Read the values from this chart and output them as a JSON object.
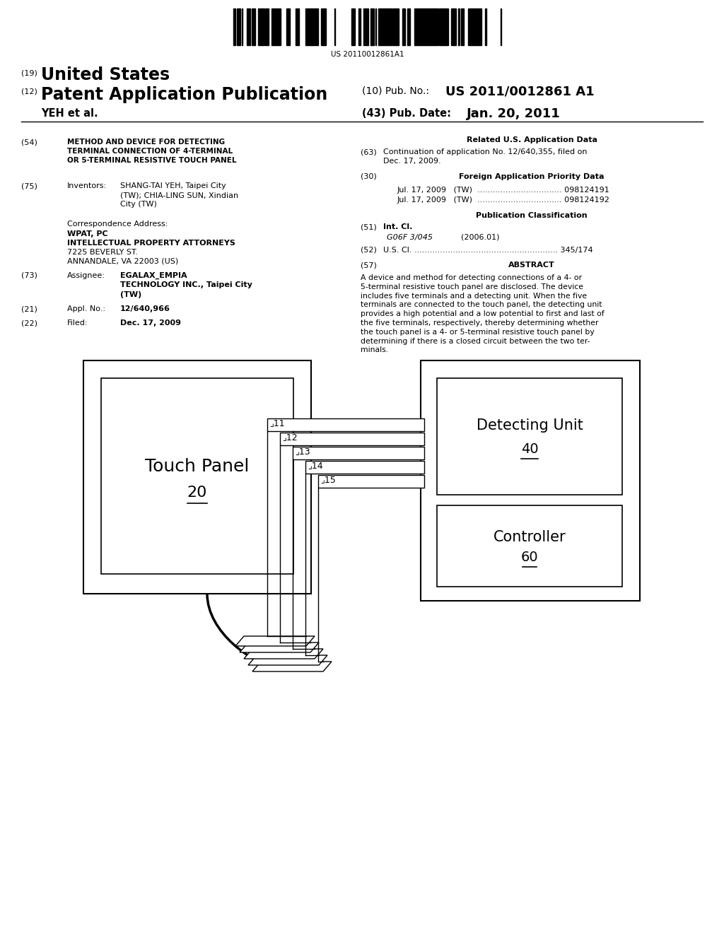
{
  "background_color": "#ffffff",
  "barcode_text": "US 20110012861A1",
  "header": {
    "country_num": "(19)",
    "country": "United States",
    "type_num": "(12)",
    "type": "Patent Application Publication",
    "pub_num_label": "(10) Pub. No.:",
    "pub_num": "US 2011/0012861 A1",
    "applicant": "YEH et al.",
    "date_label": "(43) Pub. Date:",
    "date": "Jan. 20, 2011"
  },
  "left_col": {
    "title_num": "(54)",
    "title": "METHOD AND DEVICE FOR DETECTING\nTERMINAL CONNECTION OF 4-TERMINAL\nOR 5-TERMINAL RESISTIVE TOUCH PANEL",
    "inventors_num": "(75)",
    "inventors_label": "Inventors:",
    "inventors_value": "SHANG-TAI YEH, Taipei City\n(TW); CHIA-LING SUN, Xindian\nCity (TW)",
    "corr_label": "Correspondence Address:",
    "corr_lines": [
      "WPAT, PC",
      "INTELLECTUAL PROPERTY ATTORNEYS",
      "7225 BEVERLY ST.",
      "ANNANDALE, VA 22003 (US)"
    ],
    "assignee_num": "(73)",
    "assignee_label": "Assignee:",
    "assignee_value": "EGALAX_EMPIA\nTECHNOLOGY INC., Taipei City\n(TW)",
    "appl_num": "(21)",
    "appl_label": "Appl. No.:",
    "appl_value": "12/640,966",
    "filed_num": "(22)",
    "filed_label": "Filed:",
    "filed_value": "Dec. 17, 2009"
  },
  "right_col": {
    "related_header": "Related U.S. Application Data",
    "cont_num": "(63)",
    "cont_text": "Continuation of application No. 12/640,355, filed on\nDec. 17, 2009.",
    "foreign_num": "(30)",
    "foreign_header": "Foreign Application Priority Data",
    "priority1_date": "Jul. 17, 2009",
    "priority1_country": "(TW)",
    "priority1_dots": ".................................",
    "priority1_num": "098124191",
    "priority2_date": "Jul. 17, 2009",
    "priority2_country": "(TW)",
    "priority2_dots": ".................................",
    "priority2_num": "098124192",
    "pub_class_header": "Publication Classification",
    "int_cl_num": "(51)",
    "int_cl_label": "Int. Cl.",
    "int_cl_value": "G06F 3/045",
    "int_cl_year": "(2006.01)",
    "us_cl_num": "(52)",
    "us_cl_label": "U.S. Cl.",
    "us_cl_dots": "........................................................",
    "us_cl_value": "345/174",
    "abstract_num": "(57)",
    "abstract_header": "ABSTRACT",
    "abstract_text": "A device and method for detecting connections of a 4- or\n5-terminal resistive touch panel are disclosed. The device\nincludes five terminals and a detecting unit. When the five\nterminals are connected to the touch panel, the detecting unit\nprovides a high potential and a low potential to first and last of\nthe five terminals, respectively, thereby determining whether\nthe touch panel is a 4- or 5-terminal resistive touch panel by\ndetermining if there is a closed circuit between the two ter-\nminals."
  },
  "diagram": {
    "touch_panel_label": "Touch Panel",
    "touch_panel_num": "20",
    "detecting_label": "Detecting Unit",
    "detecting_num": "40",
    "controller_label": "Controller",
    "controller_num": "60",
    "terminals": [
      "11",
      "12",
      "13",
      "14",
      "15"
    ]
  }
}
